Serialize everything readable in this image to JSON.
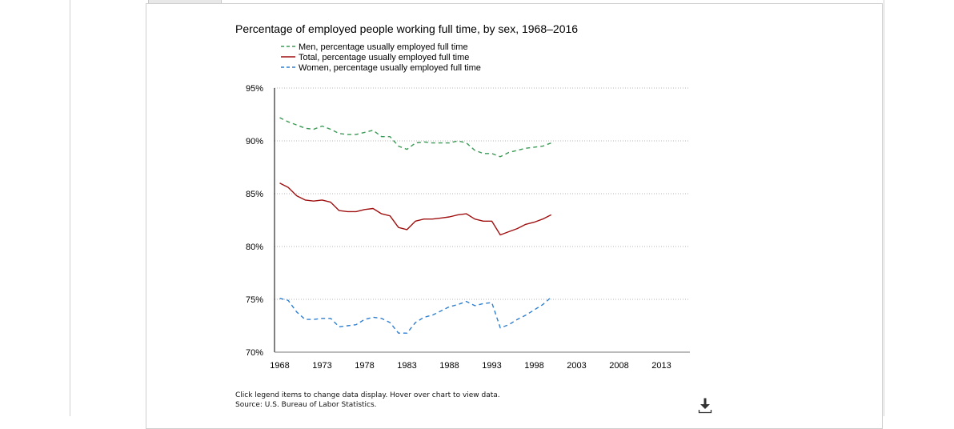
{
  "chart_data": {
    "type": "line",
    "title": "Percentage of employed people working full time, by sex, 1968–2016",
    "xlabel": "",
    "ylabel": "",
    "xlim": [
      1968,
      2016
    ],
    "ylim": [
      70,
      95
    ],
    "x_ticks": [
      "1968",
      "1973",
      "1978",
      "1983",
      "1988",
      "1993",
      "1998",
      "2003",
      "2008",
      "2013"
    ],
    "y_ticks": [
      "95%",
      "90%",
      "85%",
      "80%",
      "75%",
      "70%"
    ],
    "y_tick_values": [
      95,
      90,
      85,
      80,
      75,
      70
    ],
    "grid": true,
    "legend_position": "top",
    "x": [
      1968,
      1969,
      1970,
      1971,
      1972,
      1973,
      1974,
      1975,
      1976,
      1977,
      1978,
      1979,
      1980,
      1981,
      1982,
      1983,
      1984,
      1985,
      1986,
      1987,
      1988,
      1989,
      1990,
      1991,
      1992,
      1993,
      1994,
      1995,
      1996,
      1997,
      1998,
      1999,
      2000
    ],
    "series": [
      {
        "name": "Men, percentage usually employed full time",
        "color": "#3a9a55",
        "dash": "dashed",
        "values": [
          92.2,
          91.8,
          91.5,
          91.2,
          91.1,
          91.4,
          91.1,
          90.7,
          90.6,
          90.6,
          90.8,
          91.0,
          90.4,
          90.4,
          89.5,
          89.2,
          89.8,
          89.9,
          89.8,
          89.8,
          89.8,
          90.0,
          89.8,
          89.1,
          88.8,
          88.8,
          88.5,
          88.9,
          89.1,
          89.3,
          89.4,
          89.5,
          89.8
        ]
      },
      {
        "name": "Total, percentage usually employed full time",
        "color": "#a01010",
        "dash": "solid",
        "values": [
          86.0,
          85.6,
          84.8,
          84.4,
          84.3,
          84.4,
          84.2,
          83.4,
          83.3,
          83.3,
          83.5,
          83.6,
          83.1,
          82.9,
          81.8,
          81.6,
          82.4,
          82.6,
          82.6,
          82.7,
          82.8,
          83.0,
          83.1,
          82.6,
          82.4,
          82.4,
          81.1,
          81.4,
          81.7,
          82.1,
          82.3,
          82.6,
          83.0
        ]
      },
      {
        "name": "Women, percentage usually employed full time",
        "color": "#2f7fd0",
        "dash": "dashed",
        "values": [
          75.1,
          74.9,
          73.8,
          73.1,
          73.1,
          73.2,
          73.2,
          72.4,
          72.5,
          72.6,
          73.1,
          73.3,
          73.2,
          72.8,
          71.8,
          71.8,
          72.8,
          73.3,
          73.5,
          73.9,
          74.3,
          74.5,
          74.8,
          74.4,
          74.6,
          74.7,
          72.3,
          72.6,
          73.1,
          73.5,
          74.0,
          74.5,
          75.2
        ]
      }
    ]
  },
  "footer": {
    "note": "Click legend items to change data display. Hover over chart to view data.",
    "source": "Source: U.S. Bureau of Labor Statistics."
  },
  "icons": {
    "download": "download-icon"
  }
}
